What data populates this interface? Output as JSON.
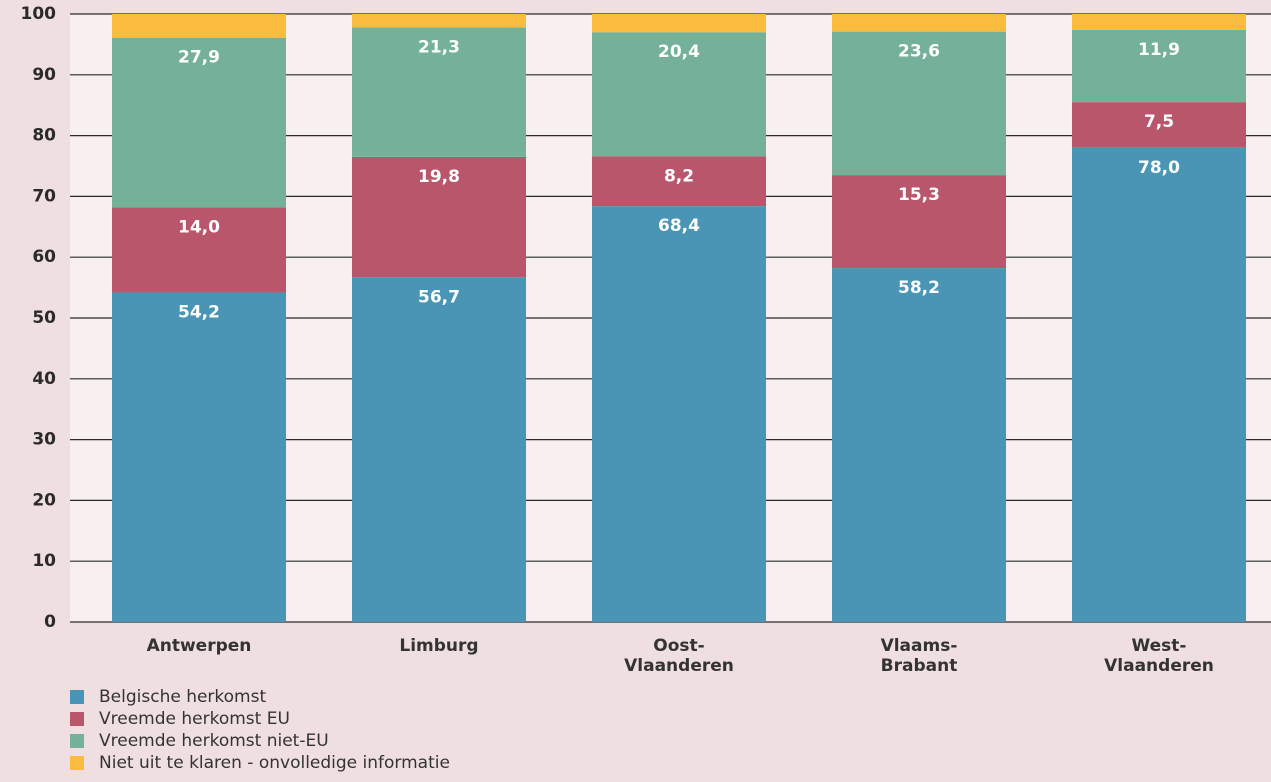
{
  "chart_data": {
    "type": "stacked_bar",
    "categories": [
      "Antwerpen",
      "Limburg",
      "Oost-Vlaanderen",
      "Vlaams-Brabant",
      "West-Vlaanderen"
    ],
    "series": [
      {
        "name": "Belgische herkomst",
        "color": "#4a95b5",
        "values": [
          54.2,
          56.7,
          68.4,
          58.2,
          78.0
        ],
        "value_labels": [
          "54,2",
          "56,7",
          "68,4",
          "58,2",
          "78,0"
        ]
      },
      {
        "name": "Vreemde herkomst EU",
        "color": "#b9566b",
        "values": [
          14.0,
          19.8,
          8.2,
          15.3,
          7.5
        ],
        "value_labels": [
          "14,0",
          "19,8",
          "8,2",
          "15,3",
          "7,5"
        ]
      },
      {
        "name": "Vreemde herkomst niet-EU",
        "color": "#74b198",
        "values": [
          27.9,
          21.3,
          20.4,
          23.6,
          11.9
        ],
        "value_labels": [
          "27,9",
          "21,3",
          "20,4",
          "23,6",
          "11,9"
        ]
      },
      {
        "name": "Niet uit te klaren - onvolledige informatie",
        "color": "#fbbb3d",
        "values": [
          3.9,
          2.2,
          3.0,
          2.9,
          2.6
        ]
      }
    ],
    "ylim": [
      0,
      100
    ],
    "yticks": [
      0,
      10,
      20,
      30,
      40,
      50,
      60,
      70,
      80,
      90,
      100
    ],
    "grid": true,
    "legend": "bottom-left"
  }
}
